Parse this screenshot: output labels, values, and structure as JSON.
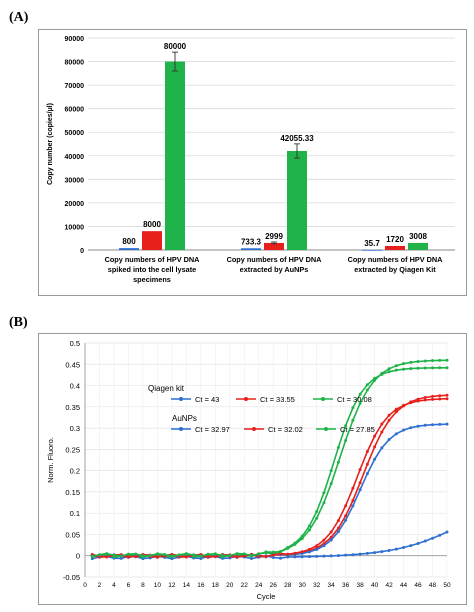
{
  "panels": {
    "a_label": "(A)",
    "b_label": "(B)"
  },
  "chart_data": [
    {
      "type": "bar",
      "ylabel": "Copy number (copies/µl)",
      "ylim": [
        0,
        90000
      ],
      "yticks": [
        "0",
        "10000",
        "20000",
        "30000",
        "40000",
        "50000",
        "60000",
        "70000",
        "80000",
        "90000"
      ],
      "grid": true,
      "groups": [
        {
          "label_lines": [
            "Copy numbers of HPV DNA",
            "spiked into the cell lysate",
            "specimens"
          ],
          "bars": [
            {
              "value": 800,
              "label": "800",
              "color": "#2e6fd1"
            },
            {
              "value": 8000,
              "label": "8000",
              "color": "#e8201c"
            },
            {
              "value": 80000,
              "label": "80000",
              "color": "#1fb34a",
              "error": 4000
            }
          ]
        },
        {
          "label_lines": [
            "Copy numbers of HPV DNA",
            "extracted by AuNPs"
          ],
          "bars": [
            {
              "value": 733.3,
              "label": "733.3",
              "color": "#2e6fd1"
            },
            {
              "value": 2999,
              "label": "2999",
              "color": "#e8201c",
              "error": 400
            },
            {
              "value": 42055.33,
              "label": "42055.33",
              "color": "#1fb34a",
              "error": 3000
            }
          ]
        },
        {
          "label_lines": [
            "Copy numbers of HPV DNA",
            "extracted by Qiagen Kit"
          ],
          "bars": [
            {
              "value": 35.7,
              "label": "35.7",
              "color": "#2e6fd1"
            },
            {
              "value": 1720,
              "label": "1720",
              "color": "#e8201c"
            },
            {
              "value": 3008,
              "label": "3008",
              "color": "#1fb34a"
            }
          ]
        }
      ]
    },
    {
      "type": "line",
      "xlabel": "Cycle",
      "ylabel": "Norm. Fluoro.",
      "xlim": [
        0,
        50
      ],
      "ylim": [
        -0.05,
        0.5
      ],
      "xticks": [
        "0",
        "2",
        "4",
        "6",
        "8",
        "10",
        "12",
        "14",
        "16",
        "18",
        "20",
        "22",
        "24",
        "26",
        "28",
        "30",
        "32",
        "34",
        "36",
        "38",
        "40",
        "42",
        "44",
        "46",
        "48",
        "50"
      ],
      "yticks": [
        "-0.05",
        "0",
        "0.05",
        "0.1",
        "0.15",
        "0.2",
        "0.25",
        "0.3",
        "0.35",
        "0.4",
        "0.45",
        "0.5"
      ],
      "legend_groups": [
        {
          "title": "Qiagen kit",
          "entries": [
            {
              "label": "Ct = 43",
              "color": "#2e6fd1"
            },
            {
              "label": "Ct = 33.55",
              "color": "#e8201c"
            },
            {
              "label": "Ct = 30.08",
              "color": "#1fb34a"
            }
          ]
        },
        {
          "title": "AuNPs",
          "entries": [
            {
              "label": "Ct = 32.97",
              "color": "#2e6fd1"
            },
            {
              "label": "Ct = 32.02",
              "color": "#e8201c"
            },
            {
              "label": "Ct = 27.85",
              "color": "#1fb34a"
            }
          ]
        }
      ],
      "series": [
        {
          "color": "#2e6fd1",
          "L": 0.18,
          "x0": 53.5,
          "k": 0.2,
          "b": -0.004
        },
        {
          "color": "#e8201c",
          "L": 0.38,
          "x0": 38.4,
          "k": 0.46,
          "b": -0.001
        },
        {
          "color": "#1fb34a",
          "L": 0.46,
          "x0": 35.2,
          "k": 0.45,
          "b": 0.0
        },
        {
          "color": "#2e6fd1",
          "L": 0.31,
          "x0": 38.0,
          "k": 0.5,
          "b": 0.0
        },
        {
          "color": "#e8201c",
          "L": 0.37,
          "x0": 37.6,
          "k": 0.48,
          "b": 0.0
        },
        {
          "color": "#1fb34a",
          "L": 0.44,
          "x0": 34.4,
          "k": 0.5,
          "b": 0.002
        }
      ]
    }
  ]
}
